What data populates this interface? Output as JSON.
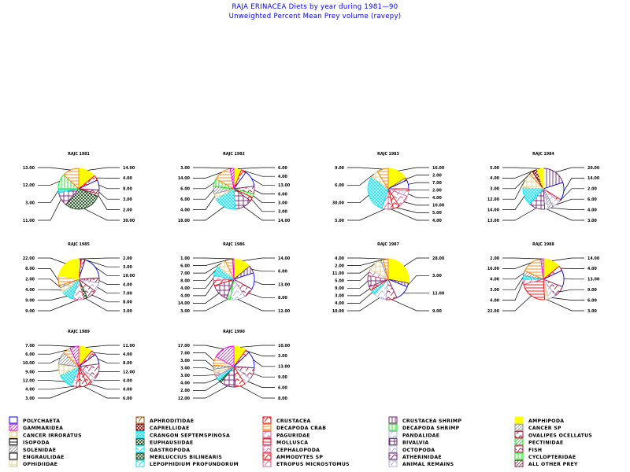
{
  "chart_data": {
    "type": "pie",
    "title": "RAJA ERINACEA Diets by year during 1981—90",
    "subtitle": "Unweighted Percent Mean Prey volume (ravepy)",
    "legend_position": "bottom",
    "legend": [
      {
        "name": "POLYCHAETA",
        "color": "#0000ff",
        "pattern": "outline"
      },
      {
        "name": "GAMMARIDEA",
        "color": "#ff00ff",
        "pattern": "diag"
      },
      {
        "name": "CANCER IRRORATUS",
        "color": "#e0d090",
        "pattern": "grid"
      },
      {
        "name": "ISOPODA",
        "color": "#000000",
        "pattern": "horiz"
      },
      {
        "name": "SOLENIDAE",
        "color": "#909090",
        "pattern": "diag"
      },
      {
        "name": "ENGRAULIDAE",
        "color": "#000000",
        "pattern": "outline"
      },
      {
        "name": "OPHIDIIDAE",
        "color": "#e0d090",
        "pattern": "grid"
      },
      {
        "name": "APHRODITIDAE",
        "color": "#a05000",
        "pattern": "web"
      },
      {
        "name": "CAPRELLIDAE",
        "color": "#800000",
        "pattern": "cross"
      },
      {
        "name": "CRANGON SEPTEMSPINOSA",
        "color": "#00e8ff",
        "pattern": "cross"
      },
      {
        "name": "EUPHAUSIIDAE",
        "color": "#205020",
        "pattern": "cross"
      },
      {
        "name": "GASTROPODA",
        "color": "#00e8ff",
        "pattern": "web"
      },
      {
        "name": "MERLUCCIUS BILINEARIS",
        "color": "#205020",
        "pattern": "cross"
      },
      {
        "name": "LEPOPHIDIUM PROFUNDORUM",
        "color": "#00e8ff",
        "pattern": "web"
      },
      {
        "name": "CRUSTACEA",
        "color": "#ff0000",
        "pattern": "web"
      },
      {
        "name": "DECAPODA CRAB",
        "color": "#ff8000",
        "pattern": "horiz"
      },
      {
        "name": "PAGURIDAE",
        "color": "#e06090",
        "pattern": "web"
      },
      {
        "name": "MOLLUSCA",
        "color": "#ff0000",
        "pattern": "horiz"
      },
      {
        "name": "CEPHALOPODA",
        "color": "#e06090",
        "pattern": "web"
      },
      {
        "name": "AMMODYTES SP",
        "color": "#ff0000",
        "pattern": "web"
      },
      {
        "name": "ETROPUS MICROSTOMUS",
        "color": "#e06090",
        "pattern": "web"
      },
      {
        "name": "CRUSTACEA SHRIMP",
        "color": "#702070",
        "pattern": "vert"
      },
      {
        "name": "DECAPODA SHRIMP",
        "color": "#00ee00",
        "pattern": "vert"
      },
      {
        "name": "PANDALIDAE",
        "color": "#b0b0e0",
        "pattern": "web"
      },
      {
        "name": "BIVALVIA",
        "color": "#702070",
        "pattern": "grid"
      },
      {
        "name": "OCTOPODA",
        "color": "#b0b0e0",
        "pattern": "web"
      },
      {
        "name": "ATHERINIDAE",
        "color": "#702070",
        "pattern": "web"
      },
      {
        "name": "ANIMAL REMAINS",
        "color": "#b0b0e0",
        "pattern": "web"
      },
      {
        "name": "AMPHIPODA",
        "color": "#ffff00",
        "pattern": "solid"
      },
      {
        "name": "CANCER SP",
        "color": "#909090",
        "pattern": "diag"
      },
      {
        "name": "OVALIPES OCELLATUS",
        "color": "#a02040",
        "pattern": "web"
      },
      {
        "name": "PECTINIDAE",
        "color": "#00ee00",
        "pattern": "diag"
      },
      {
        "name": "FISH",
        "color": "#a02040",
        "pattern": "web"
      },
      {
        "name": "CYCLOPTERIDAE",
        "color": "#00ee00",
        "pattern": "vert"
      },
      {
        "name": "ALL OTHER PREY",
        "color": "#a02040",
        "pattern": "diag"
      }
    ],
    "pies": [
      {
        "title": "RAJC 1981",
        "slices": [
          [
            "AMPHIPODA",
            14
          ],
          [
            "CRUSTACEA",
            4
          ],
          [
            "POLYCHAETA",
            8
          ],
          [
            "OVALIPES OCELLATUS",
            3
          ],
          [
            "FISH",
            2
          ],
          [
            "MERLUCCIUS BILINEARIS",
            30
          ],
          [
            "BIVALVIA",
            11
          ],
          [
            "CRANGON SEPTEMSPINOSA",
            3
          ],
          [
            "DECAPODA SHRIMP",
            12
          ],
          [
            "DECAPODA CRAB",
            13
          ]
        ]
      },
      {
        "title": "RAJC 1982",
        "slices": [
          [
            "AMPHIPODA",
            6
          ],
          [
            "CRUSTACEA",
            4
          ],
          [
            "POLYCHAETA",
            13
          ],
          [
            "OVALIPES OCELLATUS",
            6
          ],
          [
            "DECAPODA SHRIMP",
            3
          ],
          [
            "CRUSTACEA",
            3
          ],
          [
            "BIVALVIA",
            14
          ],
          [
            "CRANGON SEPTEMSPINOSA",
            18
          ],
          [
            "CANCER IRRORATUS",
            4
          ],
          [
            "CANCER SP",
            6
          ],
          [
            "DECAPODA SHRIMP",
            6
          ],
          [
            "DECAPODA CRAB",
            14
          ],
          [
            "GAMMARIDEA",
            3
          ]
        ]
      },
      {
        "title": "RAJC 1983",
        "slices": [
          [
            "AMPHIPODA",
            16
          ],
          [
            "APHRODITIDAE",
            2
          ],
          [
            "POLYCHAETA",
            7
          ],
          [
            "CRUSTACEA",
            2
          ],
          [
            "PANDALIDAE",
            4
          ],
          [
            "PAGURIDAE",
            10
          ],
          [
            "CRUSTACEA",
            5
          ],
          [
            "AMMODYTES SP",
            4
          ],
          [
            "CEPHALOPODA",
            5
          ],
          [
            "CRANGON SEPTEMSPINOSA",
            30
          ],
          [
            "CANCER IRRORATUS",
            6
          ],
          [
            "DECAPODA CRAB",
            9
          ]
        ]
      },
      {
        "title": "RAJC 1984",
        "slices": [
          [
            "CRUSTACEA SHRIMP",
            20
          ],
          [
            "POLYCHAETA",
            14
          ],
          [
            "CRUSTACEA",
            2
          ],
          [
            "PANDALIDAE",
            6
          ],
          [
            "CANCER SP",
            4
          ],
          [
            "ANIMAL REMAINS",
            3
          ],
          [
            "BIVALVIA",
            13
          ],
          [
            "CRANGON SEPTEMSPINOSA",
            14
          ],
          [
            "CANCER IRRORATUS",
            12
          ],
          [
            "DECAPODA CRAB",
            3
          ],
          [
            "CAPRELLIDAE",
            4
          ],
          [
            "AMPHIPODA",
            5
          ]
        ]
      },
      {
        "title": "RAJC 1985",
        "slices": [
          [
            "CRUSTACEA SHRIMP",
            2
          ],
          [
            "CRUSTACEA",
            3
          ],
          [
            "POLYCHAETA",
            19
          ],
          [
            "FISH",
            4
          ],
          [
            "PANDALIDAE",
            7
          ],
          [
            "OVALIPES OCELLATUS",
            8
          ],
          [
            "EUPHAUSIIDAE",
            3
          ],
          [
            "CEPHALOPODA",
            9
          ],
          [
            "CRANGON SEPTEMSPINOSA",
            9
          ],
          [
            "CANCER IRRORATUS",
            4
          ],
          [
            "SOLENIDAE",
            2
          ],
          [
            "DECAPODA CRAB",
            8
          ],
          [
            "AMPHIPODA",
            22
          ]
        ]
      },
      {
        "title": "RAJC 1986",
        "slices": [
          [
            "AMPHIPODA",
            14
          ],
          [
            "CRUSTACEA SHRIMP",
            6
          ],
          [
            "POLYCHAETA",
            13
          ],
          [
            "OVALIPES OCELLATUS",
            8
          ],
          [
            "PANDALIDAE",
            12
          ],
          [
            "DECAPODA SHRIMP",
            3
          ],
          [
            "BIVALVIA",
            14
          ],
          [
            "AMMODYTES SP",
            4
          ],
          [
            "PAGURIDAE",
            4
          ],
          [
            "CRANGON SEPTEMSPINOSA",
            8
          ],
          [
            "CANCER IRRORATUS",
            7
          ],
          [
            "DECAPODA CRAB",
            6
          ],
          [
            "GAMMARIDEA",
            1
          ]
        ]
      },
      {
        "title": "RAJC 1987",
        "slices": [
          [
            "AMPHIPODA",
            28
          ],
          [
            "CRUSTACEA SHRIMP",
            3
          ],
          [
            "POLYCHAETA",
            12
          ],
          [
            "OVALIPES OCELLATUS",
            9
          ],
          [
            "PANDALIDAE",
            10
          ],
          [
            "CRANGON SEPTEMSPINOSA",
            4
          ],
          [
            "CRUSTACEA",
            3
          ],
          [
            "BIVALVIA",
            9
          ],
          [
            "PAGURIDAE",
            5
          ],
          [
            "CANCER IRRORATUS",
            11
          ],
          [
            "SOLENIDAE",
            2
          ],
          [
            "DECAPODA CRAB",
            4
          ]
        ]
      },
      {
        "title": "RAJC 1988",
        "slices": [
          [
            "AMPHIPODA",
            14
          ],
          [
            "CRUSTACEA",
            4
          ],
          [
            "POLYCHAETA",
            13
          ],
          [
            "OVALIPES OCELLATUS",
            9
          ],
          [
            "PANDALIDAE",
            6
          ],
          [
            "CANCER IRRORATUS",
            3
          ],
          [
            "MOLLUSCA",
            22
          ],
          [
            "PAGURIDAE",
            4
          ],
          [
            "CRANGON SEPTEMSPINOSA",
            3
          ],
          [
            "SOLENIDAE",
            4
          ],
          [
            "DECAPODA CRAB",
            16
          ],
          [
            "GAMMARIDEA",
            2
          ]
        ]
      },
      {
        "title": "RAJC 1989",
        "slices": [
          [
            "AMPHIPODA",
            11
          ],
          [
            "CRUSTACEA",
            4
          ],
          [
            "POLYCHAETA",
            8
          ],
          [
            "OVALIPES OCELLATUS",
            12
          ],
          [
            "PANDALIDAE",
            4
          ],
          [
            "CRUSTACEA",
            4
          ],
          [
            "FISH",
            6
          ],
          [
            "AMMODYTES SP",
            3
          ],
          [
            "CEPHALOPODA",
            4
          ],
          [
            "CRANGON SEPTEMSPINOSA",
            12
          ],
          [
            "CANCER IRRORATUS",
            9
          ],
          [
            "CANCER SP",
            10
          ],
          [
            "DECAPODA CRAB",
            6
          ],
          [
            "GAMMARIDEA",
            7
          ]
        ]
      },
      {
        "title": "RAJC 1990",
        "slices": [
          [
            "AMPHIPODA",
            10
          ],
          [
            "CRUSTACEA",
            3
          ],
          [
            "POLYCHAETA",
            13
          ],
          [
            "OVALIPES OCELLATUS",
            9
          ],
          [
            "PANDALIDAE",
            6
          ],
          [
            "AMMODYTES SP",
            8
          ],
          [
            "BIVALVIA",
            12
          ],
          [
            "EUPHAUSIIDAE",
            2
          ],
          [
            "CRANGON SEPTEMSPINOSA",
            4
          ],
          [
            "PAGURIDAE",
            3
          ],
          [
            "CANCER IRRORATUS",
            3
          ],
          [
            "SOLENIDAE",
            3
          ],
          [
            "DECAPODA CRAB",
            7
          ],
          [
            "GAMMARIDEA",
            17
          ]
        ]
      }
    ]
  }
}
